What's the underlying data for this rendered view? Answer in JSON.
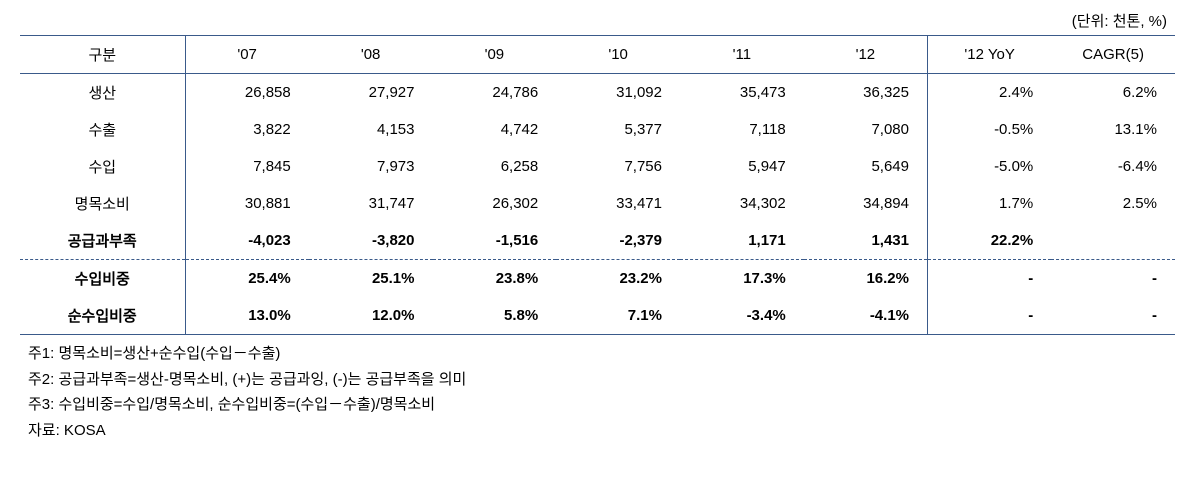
{
  "unit_label": "(단위: 천톤, %)",
  "columns": {
    "cat": "구분",
    "y07": "'07",
    "y08": "'08",
    "y09": "'09",
    "y10": "'10",
    "y11": "'11",
    "y12": "'12",
    "yoy": "'12 YoY",
    "cagr": "CAGR(5)"
  },
  "rows": [
    {
      "cat": "생산",
      "y07": "26,858",
      "y08": "27,927",
      "y09": "24,786",
      "y10": "31,092",
      "y11": "35,473",
      "y12": "36,325",
      "yoy": "2.4%",
      "cagr": "6.2%",
      "bold": false,
      "section": false
    },
    {
      "cat": "수출",
      "y07": "3,822",
      "y08": "4,153",
      "y09": "4,742",
      "y10": "5,377",
      "y11": "7,118",
      "y12": "7,080",
      "yoy": "-0.5%",
      "cagr": "13.1%",
      "bold": false,
      "section": false
    },
    {
      "cat": "수입",
      "y07": "7,845",
      "y08": "7,973",
      "y09": "6,258",
      "y10": "7,756",
      "y11": "5,947",
      "y12": "5,649",
      "yoy": "-5.0%",
      "cagr": "-6.4%",
      "bold": false,
      "section": false
    },
    {
      "cat": "명목소비",
      "y07": "30,881",
      "y08": "31,747",
      "y09": "26,302",
      "y10": "33,471",
      "y11": "34,302",
      "y12": "34,894",
      "yoy": "1.7%",
      "cagr": "2.5%",
      "bold": false,
      "section": false
    },
    {
      "cat": "공급과부족",
      "y07": "-4,023",
      "y08": "-3,820",
      "y09": "-1,516",
      "y10": "-2,379",
      "y11": "1,171",
      "y12": "1,431",
      "yoy": "22.2%",
      "cagr": "",
      "bold": true,
      "section": false
    },
    {
      "cat": "수입비중",
      "y07": "25.4%",
      "y08": "25.1%",
      "y09": "23.8%",
      "y10": "23.2%",
      "y11": "17.3%",
      "y12": "16.2%",
      "yoy": "-",
      "cagr": "-",
      "bold": true,
      "section": true
    },
    {
      "cat": "순수입비중",
      "y07": "13.0%",
      "y08": "12.0%",
      "y09": "5.8%",
      "y10": "7.1%",
      "y11": "-3.4%",
      "y12": "-4.1%",
      "yoy": "-",
      "cagr": "-",
      "bold": true,
      "section": false
    }
  ],
  "notes": {
    "n1": "주1: 명목소비=생산+순수입(수입－수출)",
    "n2": "주2: 공급과부족=생산-명목소비, (+)는 공급과잉, (-)는 공급부족을 의미",
    "n3": "주3: 수입비중=수입/명목소비, 순수입비중=(수입－수출)/명목소비",
    "src": "자료: KOSA"
  },
  "style": {
    "border_color": "#3a5a8a",
    "text_color": "#000000",
    "bg_color": "#ffffff",
    "font_size_body": 15,
    "col_widths": {
      "cat": 160,
      "year": 120,
      "stat": 110
    }
  }
}
